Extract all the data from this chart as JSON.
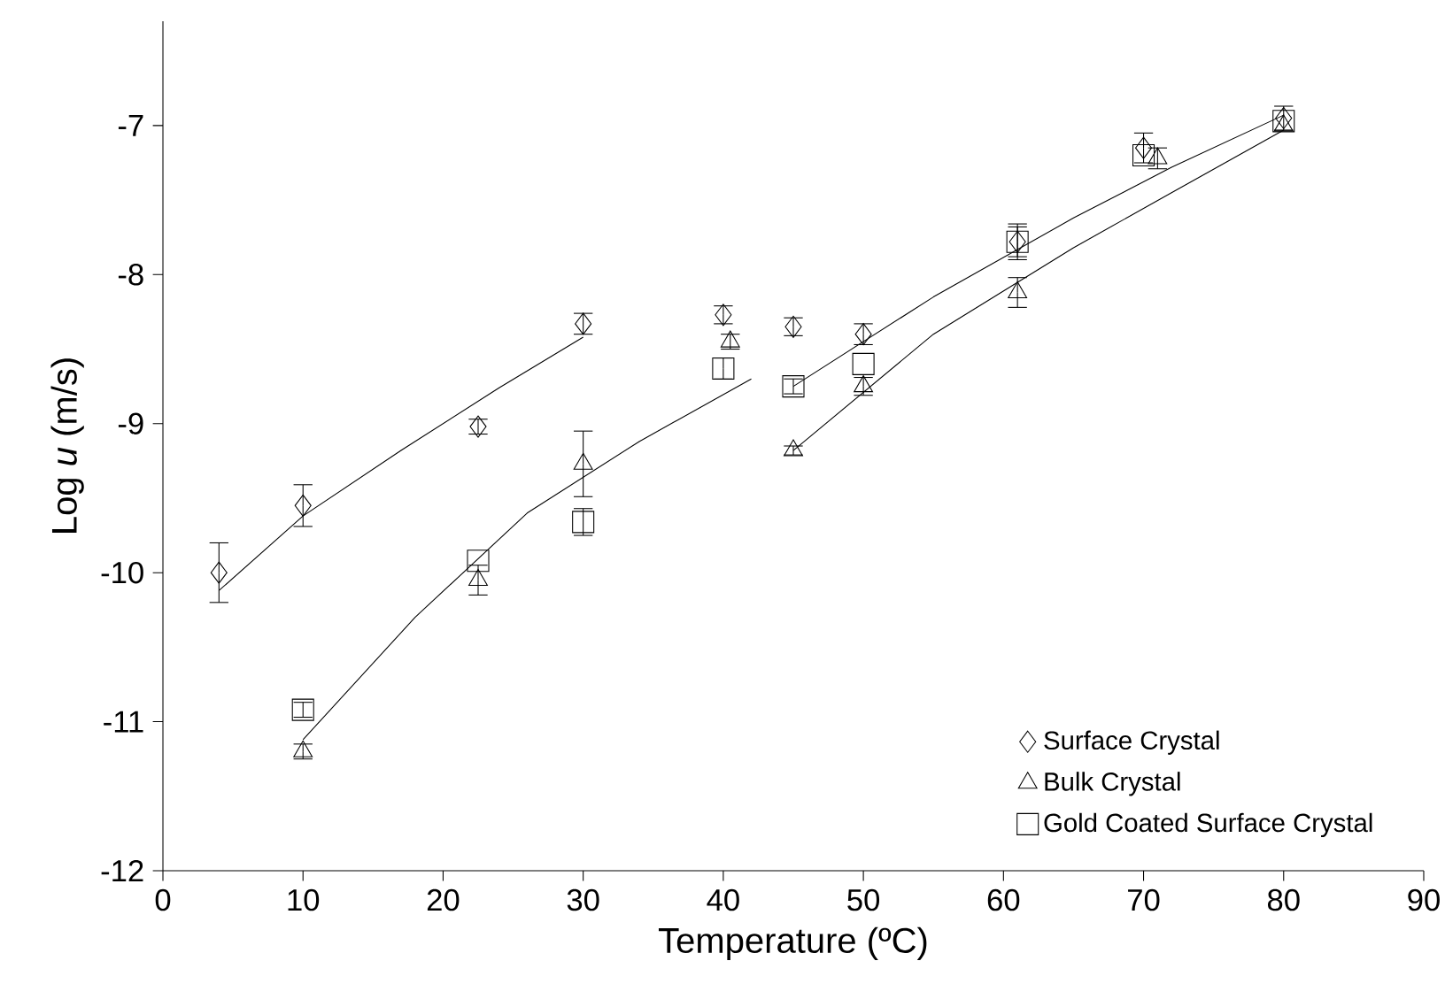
{
  "chart_data": {
    "type": "scatter",
    "xlabel": "Temperature (ºC)",
    "ylabel": "Log *u* (m/s)",
    "xlim": [
      0,
      90
    ],
    "xticks": [
      0,
      10,
      20,
      30,
      40,
      50,
      60,
      70,
      80,
      90
    ],
    "ylim": [
      -12,
      -6.3
    ],
    "yticks": [
      -12,
      -11,
      -10,
      -9,
      -8,
      -7
    ],
    "grid": false,
    "legend": "bottom right",
    "series": [
      {
        "name": "Surface Crystal",
        "color": "#000000",
        "marker": "diamond",
        "x": [
          4,
          10,
          22.5,
          30,
          40,
          45,
          50,
          61,
          70,
          80
        ],
        "values": [
          -10.0,
          -9.55,
          -9.02,
          -8.33,
          -8.27,
          -8.35,
          -8.4,
          -7.78,
          -7.15,
          -6.95
        ],
        "errors": [
          0.2,
          0.14,
          0.05,
          0.07,
          0.06,
          0.06,
          0.07,
          0.1,
          0.1,
          0.08
        ]
      },
      {
        "name": "Bulk Crystal",
        "color": "#000000",
        "marker": "triangle",
        "x": [
          10,
          22.5,
          30,
          40.5,
          45,
          50,
          61,
          71,
          80
        ],
        "values": [
          -11.2,
          -10.05,
          -9.27,
          -8.45,
          -9.18,
          -8.75,
          -8.12,
          -7.22,
          -7.0
        ],
        "errors": [
          0.05,
          0.1,
          0.22,
          0.05,
          0.03,
          0.06,
          0.1,
          0.07,
          null
        ]
      },
      {
        "name": "Gold Coated Surface Crystal",
        "color": "#000000",
        "marker": "square",
        "x": [
          10,
          22.5,
          30,
          40,
          45,
          50,
          61,
          70,
          80
        ],
        "values": [
          -10.92,
          -9.92,
          -9.66,
          -8.63,
          -8.75,
          -8.6,
          -7.78,
          -7.2,
          -6.97
        ],
        "errors": [
          0.05,
          null,
          0.09,
          0.07,
          0.05,
          null,
          0.12,
          null,
          null
        ]
      },
      {
        "type": "line",
        "color": "#000000",
        "marker": "none",
        "x": [
          4,
          10,
          17,
          24,
          30
        ],
        "values": [
          -10.12,
          -9.62,
          -9.18,
          -8.76,
          -8.42
        ]
      },
      {
        "type": "line",
        "color": "#000000",
        "marker": "none",
        "x": [
          10,
          18,
          26,
          34,
          42
        ],
        "values": [
          -11.12,
          -10.3,
          -9.6,
          -9.12,
          -8.7
        ]
      },
      {
        "type": "line",
        "color": "#000000",
        "marker": "none",
        "x": [
          45,
          55,
          65,
          72,
          80
        ],
        "values": [
          -8.75,
          -8.15,
          -7.62,
          -7.28,
          -6.93
        ]
      },
      {
        "type": "line",
        "color": "#000000",
        "marker": "none",
        "x": [
          45,
          55,
          65,
          72,
          80
        ],
        "values": [
          -9.18,
          -8.4,
          -7.82,
          -7.45,
          -7.03
        ]
      }
    ]
  }
}
